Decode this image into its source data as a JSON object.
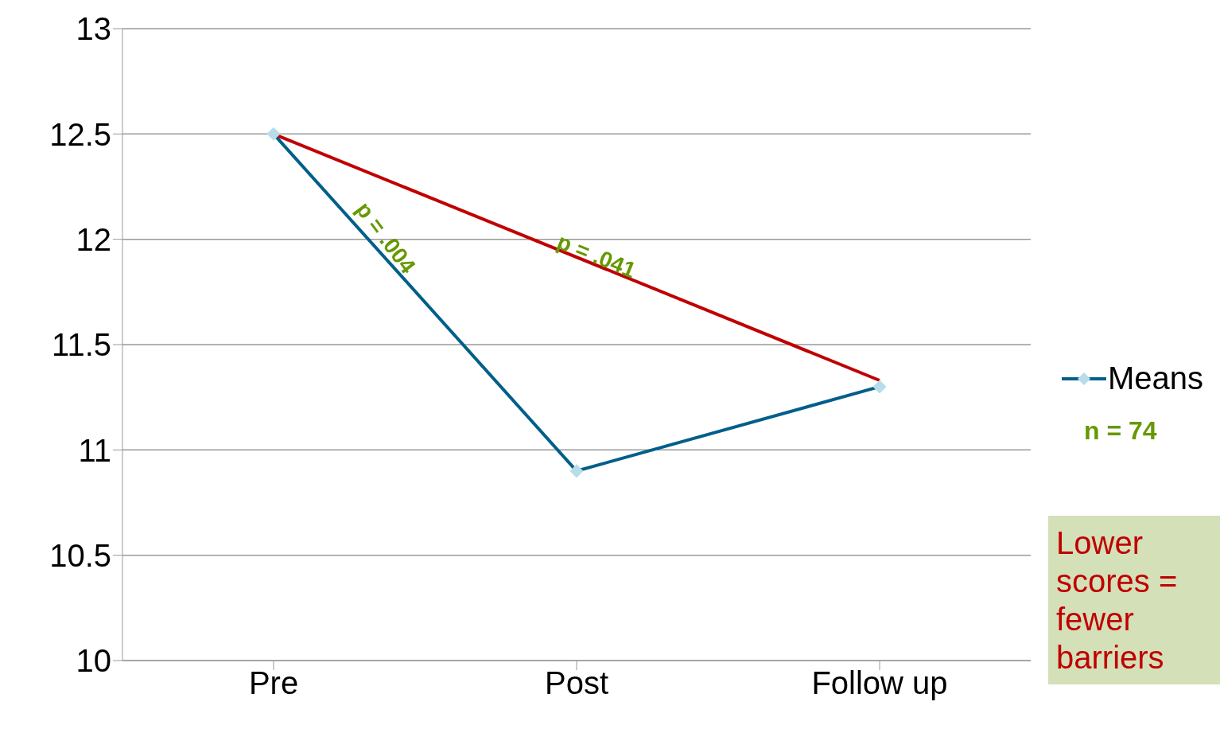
{
  "chart_data": {
    "type": "line",
    "categories": [
      "Pre",
      "Post",
      "Follow up"
    ],
    "series": [
      {
        "name": "Means",
        "color": "#005f8a",
        "values": [
          12.5,
          10.9,
          11.3
        ],
        "marker": "diamond"
      },
      {
        "color": "#c00000",
        "values": [
          12.5,
          null,
          11.33
        ],
        "marker": "none"
      }
    ],
    "ylim": [
      10,
      13
    ],
    "yticks": [
      10,
      10.5,
      11,
      11.5,
      12,
      12.5,
      13
    ],
    "grid": "y",
    "legend": "right",
    "annotations": [
      "p = .004",
      "p = .041",
      "n = 74",
      "Lower scores = fewer barriers"
    ]
  }
}
